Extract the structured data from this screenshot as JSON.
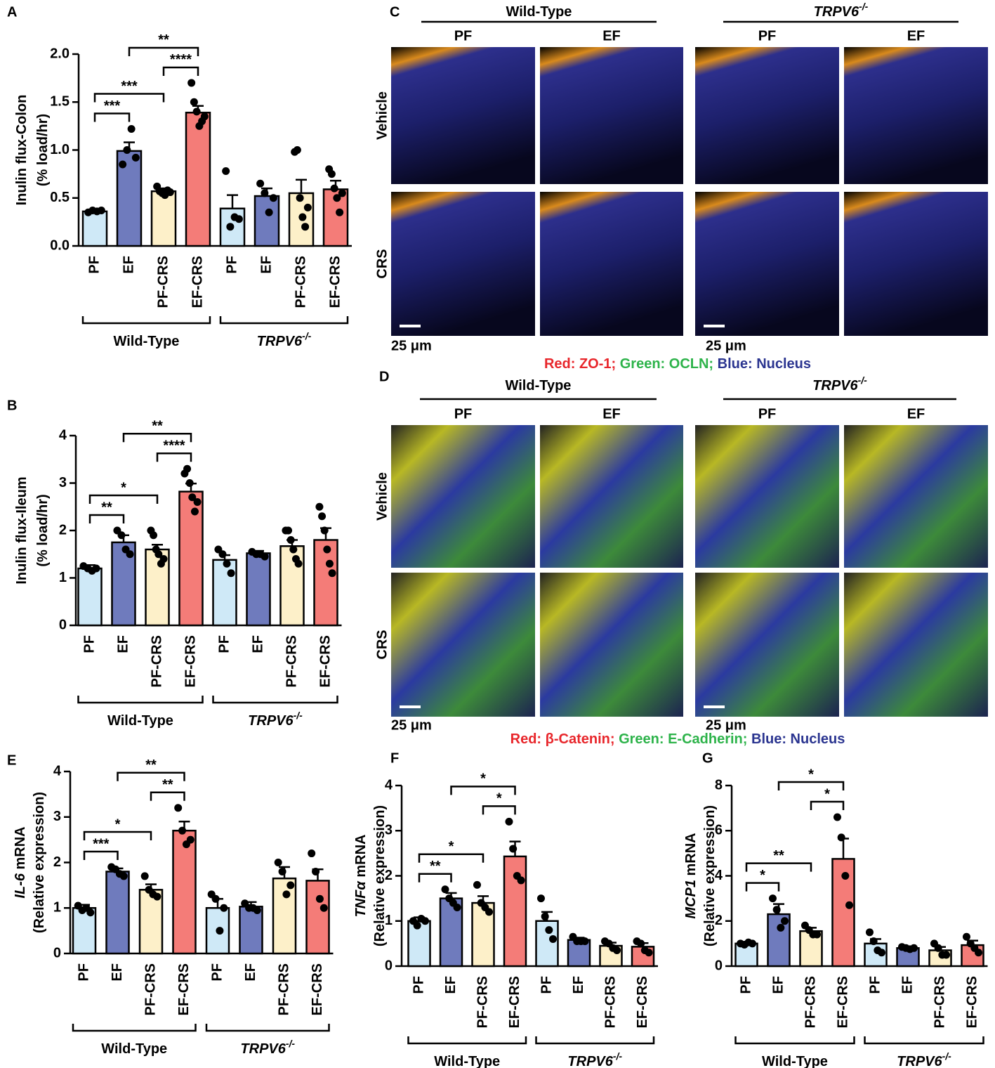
{
  "chart_data": [
    {
      "type": "bar",
      "panel": "A",
      "ylabel": [
        [
          {
            "text": "Inulin flux-Colon"
          }
        ],
        [
          {
            "text": "(% load/hr)"
          }
        ]
      ],
      "categories": [
        "PF",
        "EF",
        "PF-CRS",
        "EF-CRS",
        "PF",
        "EF",
        "PF-CRS",
        "EF-CRS"
      ],
      "colors": [
        "#cfe9f7",
        "#6f7bbd",
        "#fdf0c9",
        "#f47c78",
        "#cfe9f7",
        "#6f7bbd",
        "#fdf0c9",
        "#f47c78"
      ],
      "values": [
        0.36,
        0.99,
        0.57,
        1.39,
        0.39,
        0.52,
        0.55,
        0.59
      ],
      "errors": [
        0.01,
        0.09,
        0.03,
        0.07,
        0.14,
        0.08,
        0.14,
        0.09
      ],
      "points": [
        [
          0.35,
          0.37,
          0.36,
          0.37
        ],
        [
          0.85,
          1.0,
          1.22,
          0.92
        ],
        [
          0.62,
          0.57,
          0.55,
          0.53,
          0.58,
          0.56
        ],
        [
          1.7,
          1.5,
          1.4,
          1.25,
          1.3,
          1.35
        ],
        [
          0.78,
          0.2,
          0.3,
          0.28
        ],
        [
          0.65,
          0.55,
          0.35,
          0.5
        ],
        [
          0.98,
          1.0,
          0.5,
          0.3,
          0.2,
          0.4
        ],
        [
          0.8,
          0.75,
          0.6,
          0.5,
          0.35,
          0.55
        ]
      ],
      "ylim": [
        0,
        2
      ],
      "yticks": [
        {
          "value": 0,
          "label": "0.0"
        },
        {
          "value": 0.5,
          "label": "0.5"
        },
        {
          "value": 1,
          "label": "1.0"
        },
        {
          "value": 1.5,
          "label": "1.5"
        },
        {
          "value": 2,
          "label": "2.0"
        }
      ],
      "significance": [
        {
          "from": 0,
          "to": 1,
          "label": "***"
        },
        {
          "from": 0,
          "to": 2,
          "label": "***"
        },
        {
          "from": 2,
          "to": 3,
          "label": "****"
        },
        {
          "from": 1,
          "to": 3,
          "label": "**"
        }
      ],
      "groups": [
        {
          "label": "Wild-Type",
          "from": 0,
          "to": 3
        },
        {
          "label": "TRPV6",
          "sup": "-/-",
          "italic": true,
          "from": 4,
          "to": 7
        }
      ]
    },
    {
      "type": "bar",
      "panel": "B",
      "ylabel": [
        [
          {
            "text": "Inulin flux-Ileum"
          }
        ],
        [
          {
            "text": "(% load/hr)"
          }
        ]
      ],
      "categories": [
        "PF",
        "EF",
        "PF-CRS",
        "EF-CRS",
        "PF",
        "EF",
        "PF-CRS",
        "EF-CRS"
      ],
      "colors": [
        "#cfe9f7",
        "#6f7bbd",
        "#fdf0c9",
        "#f47c78",
        "#cfe9f7",
        "#6f7bbd",
        "#fdf0c9",
        "#f47c78"
      ],
      "values": [
        1.2,
        1.75,
        1.6,
        2.82,
        1.38,
        1.52,
        1.67,
        1.8
      ],
      "errors": [
        0.07,
        0.15,
        0.1,
        0.17,
        0.1,
        0.05,
        0.13,
        0.25
      ],
      "points": [
        [
          1.25,
          1.2,
          1.15,
          1.2
        ],
        [
          2.0,
          1.9,
          1.6,
          1.5
        ],
        [
          2.0,
          1.9,
          1.6,
          1.5,
          1.3,
          1.4
        ],
        [
          3.2,
          3.3,
          3.0,
          2.7,
          2.4,
          2.6
        ],
        [
          1.6,
          1.5,
          1.3,
          1.1
        ],
        [
          1.55,
          1.5,
          1.5,
          1.45
        ],
        [
          2.0,
          2.0,
          1.8,
          1.6,
          1.4,
          1.3
        ],
        [
          2.5,
          2.3,
          2.0,
          1.6,
          1.3,
          1.1
        ]
      ],
      "ylim": [
        0,
        4
      ],
      "yticks": [
        0,
        1,
        2,
        3,
        4
      ],
      "significance": [
        {
          "from": 0,
          "to": 1,
          "label": "**"
        },
        {
          "from": 0,
          "to": 2,
          "label": "*"
        },
        {
          "from": 2,
          "to": 3,
          "label": "****"
        },
        {
          "from": 1,
          "to": 3,
          "label": "**"
        }
      ],
      "groups": [
        {
          "label": "Wild-Type",
          "from": 0,
          "to": 3
        },
        {
          "label": "TRPV6",
          "sup": "-/-",
          "italic": true,
          "from": 4,
          "to": 7
        }
      ]
    },
    {
      "type": "bar",
      "panel": "E",
      "ylabel": [
        [
          {
            "text": "IL-6",
            "italic": true
          },
          {
            "text": " mRNA"
          }
        ],
        [
          {
            "text": "(Relative expression)"
          }
        ]
      ],
      "categories": [
        "PF",
        "EF",
        "PF-CRS",
        "EF-CRS",
        "PF",
        "EF",
        "PF-CRS",
        "EF-CRS"
      ],
      "colors": [
        "#cfe9f7",
        "#6f7bbd",
        "#fdf0c9",
        "#f47c78",
        "#cfe9f7",
        "#6f7bbd",
        "#fdf0c9",
        "#f47c78"
      ],
      "values": [
        1.0,
        1.8,
        1.4,
        2.7,
        1.0,
        1.03,
        1.65,
        1.6
      ],
      "errors": [
        0.07,
        0.07,
        0.12,
        0.2,
        0.2,
        0.1,
        0.25,
        0.25
      ],
      "points": [
        [
          1.05,
          0.95,
          1.0,
          0.9
        ],
        [
          1.9,
          1.85,
          1.75,
          1.7
        ],
        [
          1.7,
          1.4,
          1.3,
          1.25
        ],
        [
          3.2,
          2.7,
          2.4,
          2.5
        ],
        [
          1.3,
          1.2,
          0.5,
          1.0
        ],
        [
          1.1,
          1.0,
          1.0,
          0.95
        ],
        [
          2.0,
          1.8,
          1.3,
          1.5
        ],
        [
          2.2,
          1.8,
          1.2,
          1.0
        ]
      ],
      "ylim": [
        0,
        4
      ],
      "yticks": [
        0,
        1,
        2,
        3,
        4
      ],
      "significance": [
        {
          "from": 0,
          "to": 1,
          "label": "***"
        },
        {
          "from": 0,
          "to": 2,
          "label": "*"
        },
        {
          "from": 2,
          "to": 3,
          "label": "**"
        },
        {
          "from": 1,
          "to": 3,
          "label": "**"
        }
      ],
      "groups": [
        {
          "label": "Wild-Type",
          "from": 0,
          "to": 3
        },
        {
          "label": "TRPV6",
          "sup": "-/-",
          "italic": true,
          "from": 4,
          "to": 7
        }
      ]
    },
    {
      "type": "bar",
      "panel": "F",
      "ylabel": [
        [
          {
            "text": "TNFα",
            "italic": true
          },
          {
            "text": " mRNA"
          }
        ],
        [
          {
            "text": "(Relative expression)"
          }
        ]
      ],
      "categories": [
        "PF",
        "EF",
        "PF-CRS",
        "EF-CRS",
        "PF",
        "EF",
        "PF-CRS",
        "EF-CRS"
      ],
      "colors": [
        "#cfe9f7",
        "#6f7bbd",
        "#fdf0c9",
        "#f47c78",
        "#cfe9f7",
        "#6f7bbd",
        "#fdf0c9",
        "#f47c78"
      ],
      "values": [
        1.0,
        1.5,
        1.4,
        2.43,
        1.0,
        0.58,
        0.45,
        0.43
      ],
      "errors": [
        0.08,
        0.12,
        0.15,
        0.33,
        0.2,
        0.05,
        0.07,
        0.08
      ],
      "points": [
        [
          1.0,
          0.9,
          1.05,
          1.0
        ],
        [
          1.7,
          1.5,
          1.4,
          1.3
        ],
        [
          1.8,
          1.4,
          1.3,
          1.2
        ],
        [
          3.2,
          2.6,
          2.0,
          1.9
        ],
        [
          1.5,
          1.1,
          0.8,
          0.6
        ],
        [
          0.65,
          0.55,
          0.55,
          0.55
        ],
        [
          0.55,
          0.5,
          0.4,
          0.35
        ],
        [
          0.55,
          0.5,
          0.35,
          0.3
        ]
      ],
      "ylim": [
        0,
        4
      ],
      "yticks": [
        0,
        1,
        2,
        3,
        4
      ],
      "significance": [
        {
          "from": 0,
          "to": 1,
          "label": "**"
        },
        {
          "from": 0,
          "to": 2,
          "label": "*"
        },
        {
          "from": 2,
          "to": 3,
          "label": "*"
        },
        {
          "from": 1,
          "to": 3,
          "label": "*"
        }
      ],
      "groups": [
        {
          "label": "Wild-Type",
          "from": 0,
          "to": 3
        },
        {
          "label": "TRPV6",
          "sup": "-/-",
          "italic": true,
          "from": 4,
          "to": 7
        }
      ]
    },
    {
      "type": "bar",
      "panel": "G",
      "ylabel": [
        [
          {
            "text": "MCP1",
            "italic": true
          },
          {
            "text": " mRNA"
          }
        ],
        [
          {
            "text": "(Relative expression)"
          }
        ]
      ],
      "categories": [
        "PF",
        "EF",
        "PF-CRS",
        "EF-CRS",
        "PF",
        "EF",
        "PF-CRS",
        "EF-CRS"
      ],
      "colors": [
        "#cfe9f7",
        "#6f7bbd",
        "#fdf0c9",
        "#f47c78",
        "#cfe9f7",
        "#6f7bbd",
        "#fdf0c9",
        "#f47c78"
      ],
      "values": [
        1.0,
        2.3,
        1.55,
        4.75,
        1.0,
        0.8,
        0.7,
        0.93
      ],
      "errors": [
        0.05,
        0.45,
        0.15,
        0.9,
        0.2,
        0.05,
        0.15,
        0.2
      ],
      "points": [
        [
          1.0,
          0.95,
          1.05,
          1.0
        ],
        [
          3.0,
          2.5,
          1.7,
          2.0
        ],
        [
          1.8,
          1.6,
          1.4,
          1.4
        ],
        [
          6.6,
          5.7,
          4.0,
          2.7
        ],
        [
          1.5,
          1.1,
          0.7,
          0.6
        ],
        [
          0.85,
          0.8,
          0.75,
          0.8
        ],
        [
          1.0,
          0.8,
          0.5,
          0.5
        ],
        [
          1.3,
          1.0,
          0.8,
          0.6
        ]
      ],
      "ylim": [
        0,
        8
      ],
      "yticks": [
        0,
        2,
        4,
        6,
        8
      ],
      "significance": [
        {
          "from": 0,
          "to": 1,
          "label": "*"
        },
        {
          "from": 0,
          "to": 2,
          "label": "**"
        },
        {
          "from": 2,
          "to": 3,
          "label": "*"
        },
        {
          "from": 1,
          "to": 3,
          "label": "*"
        }
      ],
      "groups": [
        {
          "label": "Wild-Type",
          "from": 0,
          "to": 3
        },
        {
          "label": "TRPV6",
          "sup": "-/-",
          "italic": true,
          "from": 4,
          "to": 7
        }
      ]
    }
  ],
  "micrographs": [
    {
      "panel": "C",
      "groups": [
        {
          "label": "Wild-Type"
        },
        {
          "label": "TRPV6",
          "sup": "-/-",
          "italic": true
        }
      ],
      "columns": [
        "PF",
        "EF",
        "PF",
        "EF"
      ],
      "rows": [
        "Vehicle",
        "CRS"
      ],
      "scale": [
        "25 μm",
        "25 μm"
      ],
      "legend": [
        {
          "text": "Red: ZO-1;",
          "color": "#e8262b"
        },
        {
          "text": " Green: OCLN;",
          "color": "#2db34a"
        },
        {
          "text": " Blue: Nucleus",
          "color": "#2b3590"
        }
      ]
    },
    {
      "panel": "D",
      "groups": [
        {
          "label": "Wild-Type"
        },
        {
          "label": "TRPV6",
          "sup": "-/-",
          "italic": true
        }
      ],
      "columns": [
        "PF",
        "EF",
        "PF",
        "EF"
      ],
      "rows": [
        "Vehicle",
        "CRS"
      ],
      "scale": [
        "25 μm",
        "25 μm"
      ],
      "legend": [
        {
          "text": "Red: β-Catenin;",
          "color": "#e8262b"
        },
        {
          "text": " Green: E-Cadherin;",
          "color": "#2db34a"
        },
        {
          "text": " Blue: Nucleus",
          "color": "#2b3590"
        }
      ]
    }
  ]
}
